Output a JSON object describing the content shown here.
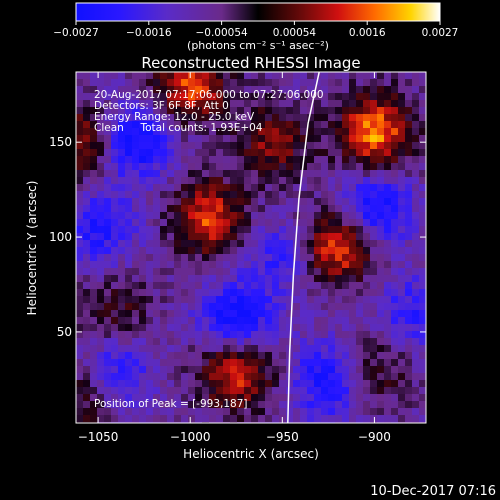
{
  "chart_data": {
    "type": "heatmap",
    "title": "Reconstructed RHESSI Image",
    "xlabel": "Heliocentric X (arcsec)",
    "ylabel": "Heliocentric Y (arcsec)",
    "xlim": [
      -1062,
      -872
    ],
    "ylim": [
      2,
      187
    ],
    "x_ticks": [
      -1050,
      -1000,
      -950,
      -900
    ],
    "x_tick_labels": [
      "−1050",
      "−1000",
      "−950",
      "−900"
    ],
    "y_ticks": [
      50,
      100,
      150
    ],
    "y_tick_labels": [
      "50",
      "100",
      "150"
    ],
    "colorbar": {
      "range": [
        -0.0027,
        0.0027
      ],
      "tick_labels": [
        "−0.0027",
        "−0.0016",
        "−0.00054",
        "0.00054",
        "0.0016",
        "0.0027"
      ],
      "unit_label": "(photons cm⁻² s⁻¹ asec⁻²)"
    },
    "info_lines": [
      "20-Aug-2017 07:17:06.000 to 07:27:06.000",
      "Detectors: 3F 6F 8F, Att 0",
      "Energy Range: 12.0 - 25.0 keV",
      "Clean     Total counts: 1.93E+04"
    ],
    "peak_label": "Position of Peak = [-993,187]",
    "peak_position": [
      -993,
      187
    ],
    "limb_curve": [
      [
        -947,
        2
      ],
      [
        -946,
        40
      ],
      [
        -944,
        80
      ],
      [
        -941,
        120
      ],
      [
        -936,
        160
      ],
      [
        -930,
        187
      ]
    ],
    "bright_sources": [
      {
        "x": -900,
        "y": 155,
        "intensity": 0.0027
      },
      {
        "x": -920,
        "y": 95,
        "intensity": 0.0025
      },
      {
        "x": -990,
        "y": 110,
        "intensity": 0.0022
      },
      {
        "x": -975,
        "y": 30,
        "intensity": 0.0024
      },
      {
        "x": -1000,
        "y": 180,
        "intensity": 0.0023
      },
      {
        "x": -1060,
        "y": 150,
        "intensity": 0.0018
      },
      {
        "x": -955,
        "y": 150,
        "intensity": 0.0015
      },
      {
        "x": -1060,
        "y": 15,
        "intensity": 0.0012
      },
      {
        "x": -900,
        "y": 30,
        "intensity": 0.0011
      },
      {
        "x": -1040,
        "y": 60,
        "intensity": 0.001
      }
    ],
    "dark_sources": [
      {
        "x": -1030,
        "y": 150,
        "intensity": -0.002
      },
      {
        "x": -975,
        "y": 55,
        "intensity": -0.0022
      },
      {
        "x": -900,
        "y": 115,
        "intensity": -0.002
      },
      {
        "x": -925,
        "y": 25,
        "intensity": -0.0018
      },
      {
        "x": -1050,
        "y": 105,
        "intensity": -0.0015
      },
      {
        "x": -1040,
        "y": 30,
        "intensity": -0.0014
      },
      {
        "x": -950,
        "y": 90,
        "intensity": -0.0012
      },
      {
        "x": -880,
        "y": 60,
        "intensity": -0.0012
      }
    ],
    "grid": false
  },
  "timestamp": "10-Dec-2017 07:16"
}
